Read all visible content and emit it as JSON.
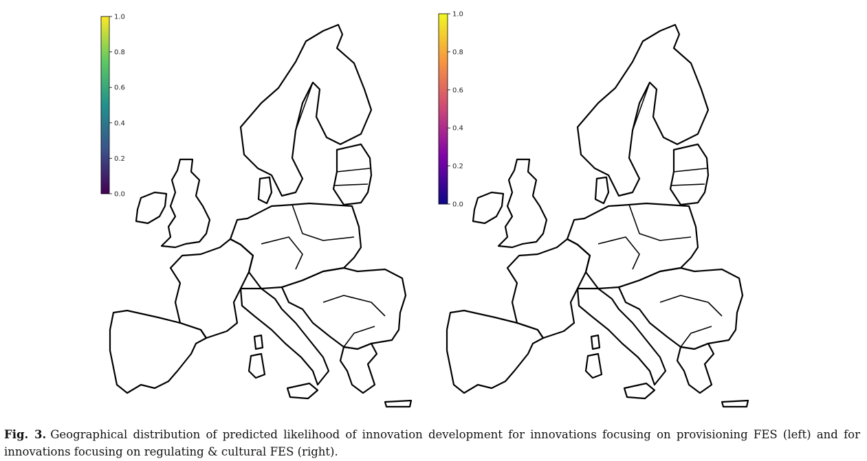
{
  "figure": {
    "left_panel": {
      "colormap_name": "viridis",
      "stops": [
        "#440154",
        "#3b528b",
        "#21918c",
        "#5ec962",
        "#fde725"
      ],
      "colorbar_ticks": [
        "0.0",
        "0.2",
        "0.4",
        "0.6",
        "0.8",
        "1.0"
      ]
    },
    "right_panel": {
      "colormap_name": "plasma",
      "stops": [
        "#0d0887",
        "#7e03a8",
        "#cc4778",
        "#f89540",
        "#f0f921"
      ],
      "colorbar_ticks": [
        "0.0",
        "0.2",
        "0.4",
        "0.6",
        "0.8",
        "1.0"
      ]
    }
  },
  "caption": {
    "label": "Fig. 3.",
    "text": "Geographical distribution of predicted likelihood of innovation development for innovations focusing on provisioning FES (left) and for innovations focusing on regulating & cultural FES (right)."
  }
}
